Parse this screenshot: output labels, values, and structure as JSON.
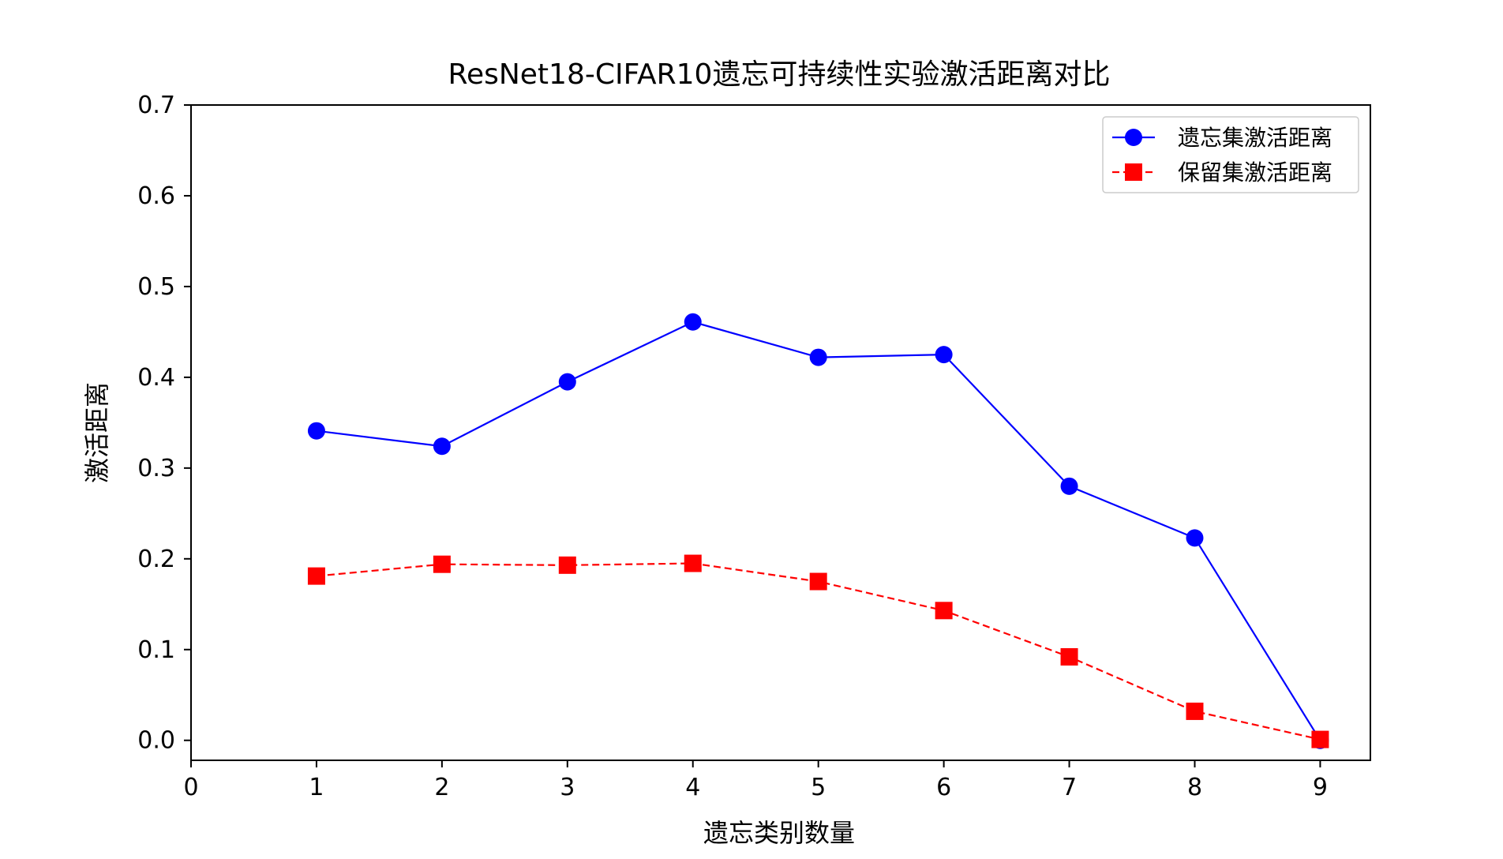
{
  "chart_data": {
    "type": "line",
    "title": "ResNet18-CIFAR10遗忘可持续性实验激活距离对比",
    "xlabel": "遗忘类别数量",
    "ylabel": "激活距离",
    "xlim": [
      0,
      9.4
    ],
    "ylim": [
      -0.022,
      0.7
    ],
    "xticks": [
      0,
      1,
      2,
      3,
      4,
      5,
      6,
      7,
      8,
      9
    ],
    "yticks": [
      0.0,
      0.1,
      0.2,
      0.3,
      0.4,
      0.5,
      0.6,
      0.7
    ],
    "ytick_labels": [
      "0.0",
      "0.1",
      "0.2",
      "0.3",
      "0.4",
      "0.5",
      "0.6",
      "0.7"
    ],
    "grid": false,
    "legend_position": "top-right",
    "x": [
      1,
      2,
      3,
      4,
      5,
      6,
      7,
      8,
      9
    ],
    "series": [
      {
        "name": "遗忘集激活距离",
        "color": "#0000ff",
        "marker": "circle",
        "linestyle": "solid",
        "values": [
          0.341,
          0.324,
          0.395,
          0.461,
          0.422,
          0.425,
          0.28,
          0.223,
          0.0
        ]
      },
      {
        "name": "保留集激活距离",
        "color": "#ff0000",
        "marker": "square",
        "linestyle": "dashed",
        "values": [
          0.181,
          0.194,
          0.193,
          0.195,
          0.175,
          0.143,
          0.092,
          0.032,
          0.001
        ]
      }
    ]
  }
}
